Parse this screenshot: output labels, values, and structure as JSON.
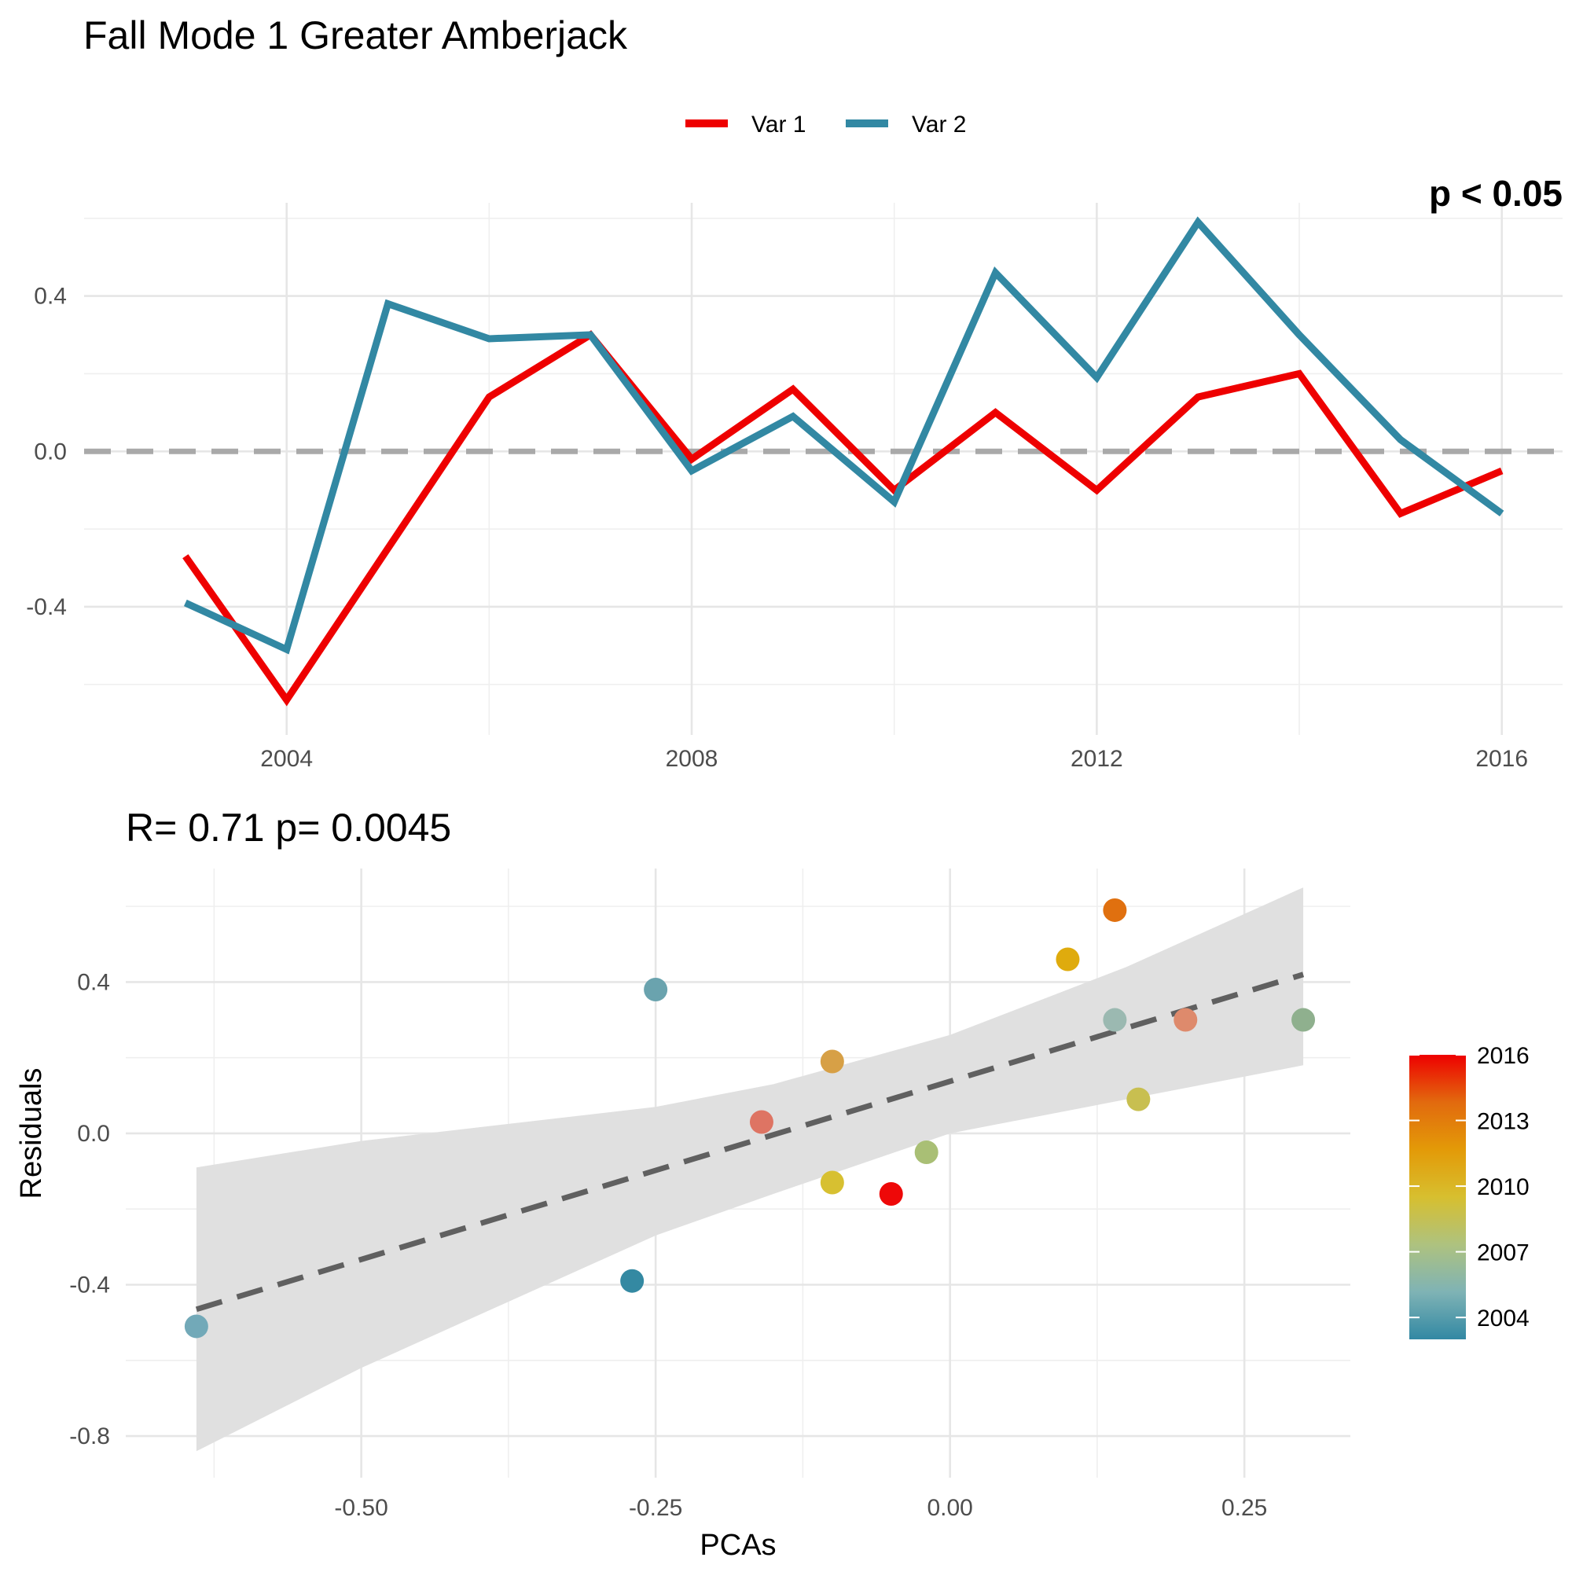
{
  "title": "Fall Mode 1 Greater Amberjack",
  "chart_data": [
    {
      "type": "line",
      "legend": {
        "placement": "top",
        "entries": [
          "Var 1",
          "Var 2"
        ]
      },
      "x": [
        2003,
        2004,
        2005,
        2006,
        2007,
        2008,
        2009,
        2010,
        2011,
        2012,
        2013,
        2014,
        2015,
        2016
      ],
      "series": [
        {
          "name": "Var 1",
          "color": "#ee0000",
          "values": [
            -0.27,
            -0.64,
            -0.25,
            0.14,
            0.3,
            -0.02,
            0.16,
            -0.1,
            0.1,
            -0.1,
            0.14,
            0.2,
            -0.16,
            -0.05
          ]
        },
        {
          "name": "Var 2",
          "color": "#3288a3",
          "values": [
            -0.39,
            -0.51,
            0.38,
            0.29,
            0.3,
            -0.05,
            0.09,
            -0.13,
            0.46,
            0.19,
            0.59,
            0.3,
            0.03,
            -0.16
          ]
        }
      ],
      "reference_line": {
        "y": 0,
        "style": "dashed",
        "color": "#a9a9a9"
      },
      "x_ticks": [
        2004,
        2008,
        2012,
        2016
      ],
      "x_tick_labels": [
        "2004",
        "2008",
        "2012",
        "2016"
      ],
      "y_ticks": [
        -0.4,
        0.0,
        0.4
      ],
      "y_tick_labels": [
        "-0.4",
        "0.0",
        "0.4"
      ],
      "xlim": [
        2002,
        2016.6
      ],
      "ylim": [
        -0.73,
        0.64
      ],
      "xlabel": "",
      "ylabel": "",
      "grid": true,
      "corner_annotation": "p < 0.05"
    },
    {
      "type": "scatter",
      "annotation": "R= 0.71  p= 0.0045",
      "xlabel": "PCAs",
      "ylabel": "Residuals",
      "points": [
        {
          "x": 0.3,
          "y": 0.3,
          "year": 2003
        },
        {
          "x": -0.27,
          "y": -0.39,
          "year": 2004
        },
        {
          "x": -0.25,
          "y": 0.38,
          "year": 2005
        },
        {
          "x": 0.14,
          "y": 0.3,
          "year": 2006
        },
        {
          "x": -0.02,
          "y": -0.05,
          "year": 2007
        },
        {
          "x": 0.16,
          "y": 0.09,
          "year": 2008
        },
        {
          "x": -0.1,
          "y": -0.13,
          "year": 2009
        },
        {
          "x": 0.1,
          "y": 0.46,
          "year": 2010
        },
        {
          "x": -0.1,
          "y": 0.19,
          "year": 2011
        },
        {
          "x": 0.14,
          "y": 0.59,
          "year": 2012
        },
        {
          "x": 0.2,
          "y": 0.3,
          "year": 2013
        },
        {
          "x": -0.16,
          "y": 0.03,
          "year": 2014
        },
        {
          "x": -0.05,
          "y": -0.16,
          "year": 2015
        },
        {
          "x": -0.64,
          "y": -0.51,
          "year": 2016
        }
      ],
      "point_colors": [
        "#8fb08e",
        "#3489a2",
        "#6aa3ae",
        "#9bb9b1",
        "#a9bf75",
        "#c8bf50",
        "#d7c031",
        "#dfab0d",
        "#d7a046",
        "#e0700f",
        "#de8a6c",
        "#de7463",
        "#ee0808",
        "#72a9b8"
      ],
      "fit_line": {
        "x": [
          -0.64,
          0.3
        ],
        "y": [
          -0.465,
          0.42
        ],
        "style": "dashed",
        "color": "#606060"
      },
      "confidence_band": {
        "x": [
          -0.64,
          -0.5,
          -0.25,
          -0.15,
          0.0,
          0.15,
          0.3
        ],
        "lower": [
          -0.84,
          -0.62,
          -0.27,
          -0.16,
          0.0,
          0.09,
          0.18
        ],
        "upper": [
          -0.09,
          -0.02,
          0.07,
          0.13,
          0.26,
          0.44,
          0.65
        ],
        "color": "#e0e0e0"
      },
      "x_ticks": [
        -0.5,
        -0.25,
        0.0,
        0.25
      ],
      "x_tick_labels": [
        "-0.50",
        "-0.25",
        "0.00",
        "0.25"
      ],
      "y_ticks": [
        -0.8,
        -0.4,
        0.0,
        0.4
      ],
      "y_tick_labels": [
        "-0.8",
        "-0.4",
        "0.0",
        "0.4"
      ],
      "xlim": [
        -0.7,
        0.34
      ],
      "ylim": [
        -0.91,
        0.7
      ],
      "grid": true,
      "colorbar": {
        "placement": "right",
        "labels": [
          "2016",
          "2013",
          "2010",
          "2007",
          "2004"
        ],
        "values": [
          2016,
          2013,
          2010,
          2007,
          2004
        ],
        "range": [
          2003,
          2016
        ],
        "colors": [
          "#3288a3",
          "#7fb3b5",
          "#aec27f",
          "#d7bf2f",
          "#e39a08",
          "#e26a0e",
          "#ee0000"
        ]
      }
    }
  ]
}
